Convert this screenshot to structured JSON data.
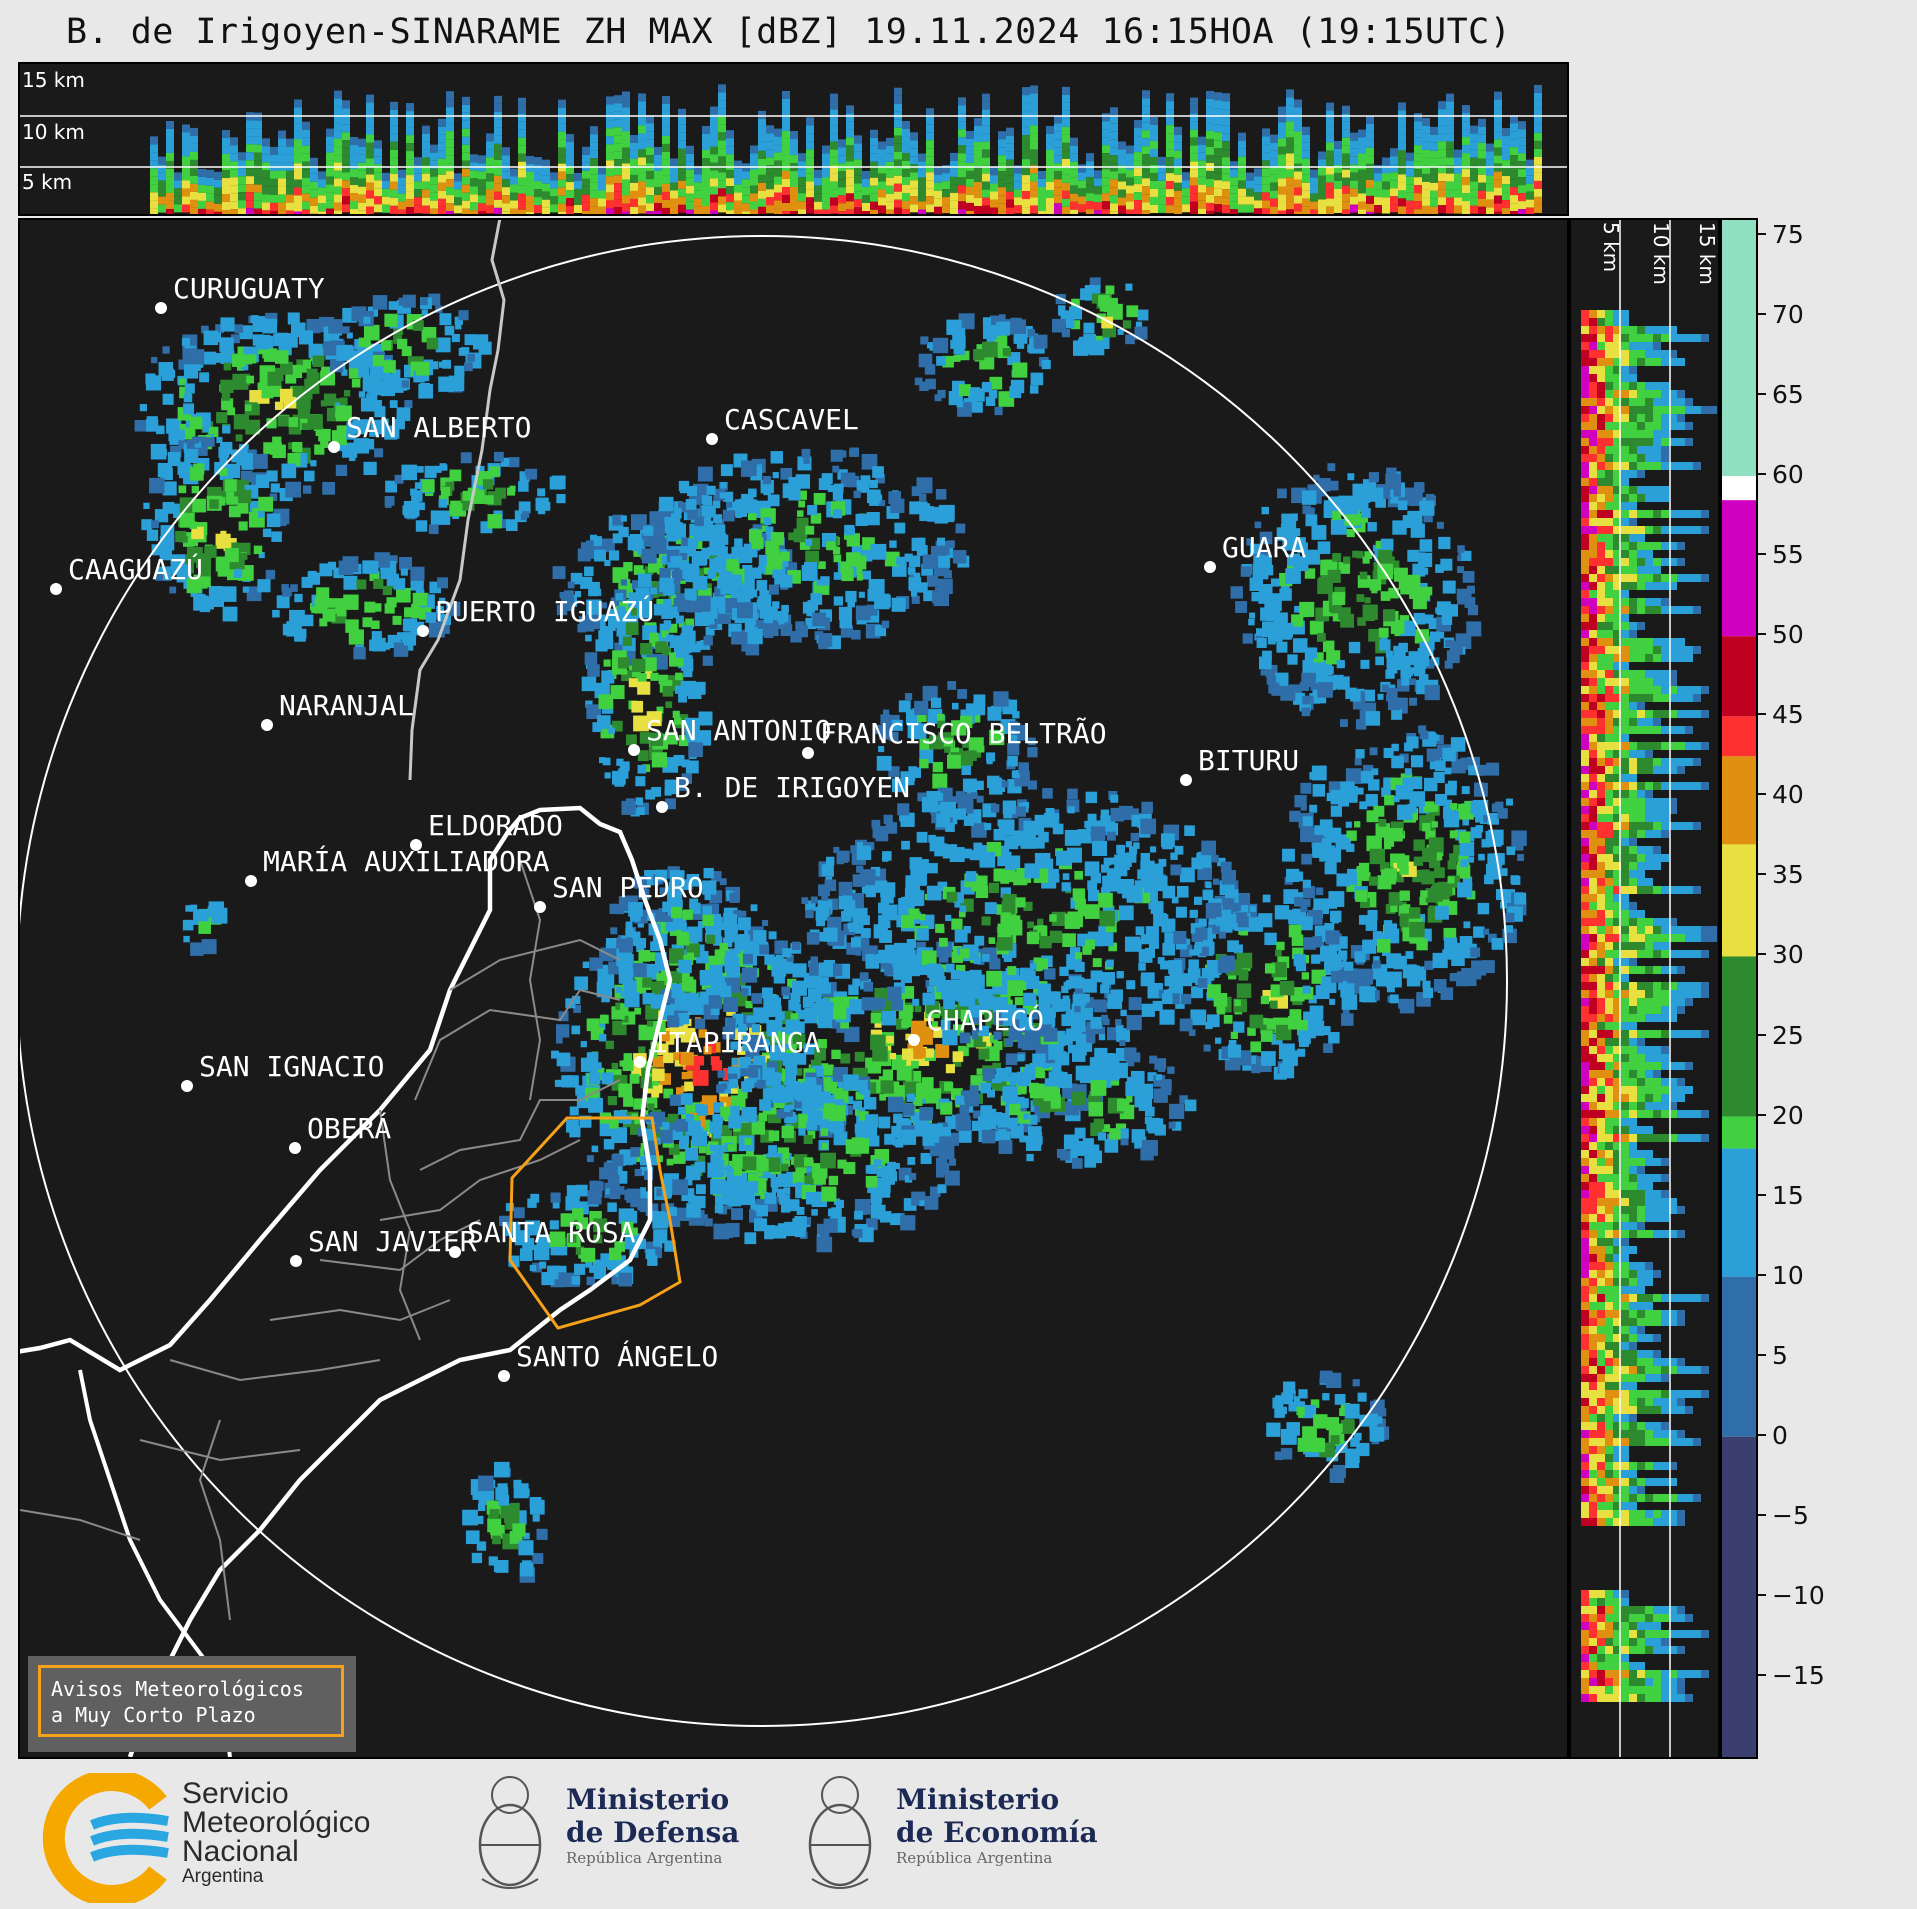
{
  "title": "B. de Irigoyen-SINARAME ZH MAX [dBZ] 19.11.2024 16:15HOA (19:15UTC)",
  "top_profile": {
    "height_labels": [
      "15 km",
      "10 km",
      "5 km"
    ]
  },
  "right_profile": {
    "height_labels": [
      "5 km",
      "10 km",
      "15 km"
    ]
  },
  "colorbar": {
    "unit": "dBZ",
    "ticks": [
      "75",
      "70",
      "65",
      "60",
      "55",
      "50",
      "45",
      "40",
      "35",
      "30",
      "25",
      "20",
      "15",
      "10",
      "5",
      "0",
      "−5",
      "−10",
      "−15"
    ],
    "tick_values": [
      75,
      70,
      65,
      60,
      55,
      50,
      45,
      40,
      35,
      30,
      25,
      20,
      15,
      10,
      5,
      0,
      -5,
      -10,
      -15
    ],
    "range": [
      -20,
      76
    ],
    "bands": [
      {
        "from": 60,
        "to": 76,
        "color": "#8fe0c0"
      },
      {
        "from": 58.5,
        "to": 60,
        "color": "#ffffff"
      },
      {
        "from": 50,
        "to": 58.5,
        "color": "#d000c0"
      },
      {
        "from": 45,
        "to": 50,
        "color": "#c00020"
      },
      {
        "from": 42.5,
        "to": 45,
        "color": "#ff3030"
      },
      {
        "from": 37,
        "to": 42.5,
        "color": "#e09010"
      },
      {
        "from": 30,
        "to": 37,
        "color": "#e8e040"
      },
      {
        "from": 20,
        "to": 30,
        "color": "#2e8a2e"
      },
      {
        "from": 18,
        "to": 20,
        "color": "#40d040"
      },
      {
        "from": 10,
        "to": 18,
        "color": "#2a9fd8"
      },
      {
        "from": 0,
        "to": 10,
        "color": "#2f6ea8"
      },
      {
        "from": -20,
        "to": 0,
        "color": "#3a3f70"
      }
    ]
  },
  "cities": [
    {
      "name": "CURUGUATY"
    },
    {
      "name": "SAN ALBERTO"
    },
    {
      "name": "CASCAVEL"
    },
    {
      "name": "CAAGUAZÚ"
    },
    {
      "name": "PUERTO IGUAZÚ"
    },
    {
      "name": "GUARA"
    },
    {
      "name": "NARANJAL"
    },
    {
      "name": "SAN ANTONIO"
    },
    {
      "name": "FRANCISCO BELTRÃO"
    },
    {
      "name": "BITURU"
    },
    {
      "name": "B. DE IRIGOYEN"
    },
    {
      "name": "ELDORADO"
    },
    {
      "name": "MARÍA AUXILIADORA"
    },
    {
      "name": "SAN PEDRO"
    },
    {
      "name": "CHAPECÓ"
    },
    {
      "name": "ITAPIRANGA"
    },
    {
      "name": "SAN IGNACIO"
    },
    {
      "name": "OBERÁ"
    },
    {
      "name": "SAN JAVIER"
    },
    {
      "name": "SANTA ROSA"
    },
    {
      "name": "SANTO ÁNGELO"
    }
  ],
  "warning_legend": {
    "line1": "Avisos Meteorológicos",
    "line2": "a Muy Corto Plazo",
    "color": "#f5a11a"
  },
  "footer": {
    "smn": {
      "line1": "Servicio",
      "line2": "Meteorológico",
      "line3": "Nacional",
      "line4": "Argentina"
    },
    "defensa": {
      "line1": "Ministerio",
      "line2": "de Defensa",
      "line3": "República Argentina"
    },
    "economia": {
      "line1": "Ministerio",
      "line2": "de Economía",
      "line3": "República Argentina"
    }
  },
  "palette": {
    "panel_bg": "#1a1a1a",
    "page_bg": "#e8e8e8"
  }
}
